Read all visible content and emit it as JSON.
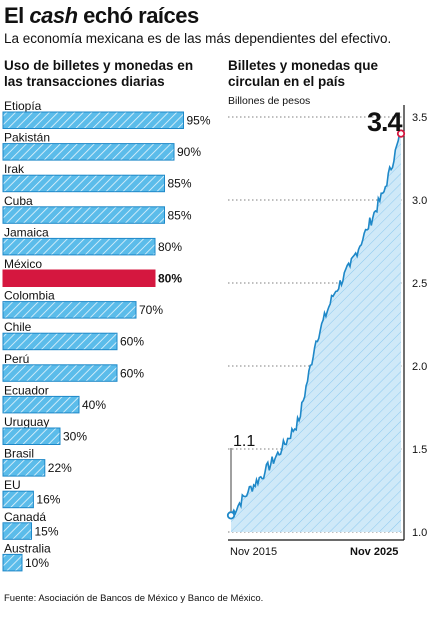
{
  "header": {
    "title_pre": "El ",
    "title_em": "cash",
    "title_post": " echó raíces",
    "subtitle": "La economía mexicana es de las más dependientes del efectivo."
  },
  "colors": {
    "bar": "#5bbcea",
    "bar_highlight": "#d5173f",
    "bar_stroke": "#1e88c8",
    "area_fill": "#cfe9f8",
    "line": "#1e88c8",
    "marker_end": "#d5173f"
  },
  "chart_data": [
    {
      "type": "bar",
      "orientation": "horizontal",
      "title": "Uso de billetes y monedas en las transacciones diarias",
      "categories": [
        "Etiopía",
        "Pakistán",
        "Irak",
        "Cuba",
        "Jamaica",
        "México",
        "Colombia",
        "Chile",
        "Perú",
        "Ecuador",
        "Uruguay",
        "Brasil",
        "EU",
        "Canadá",
        "Australia"
      ],
      "values": [
        95,
        90,
        85,
        85,
        80,
        80,
        70,
        60,
        60,
        40,
        30,
        22,
        16,
        15,
        10
      ],
      "value_labels": [
        "95%",
        "90%",
        "85%",
        "85%",
        "80%",
        "80%",
        "70%",
        "60%",
        "60%",
        "40%",
        "30%",
        "22%",
        "16%",
        "15%",
        "10%"
      ],
      "highlight": "México",
      "xlim": [
        0,
        100
      ]
    },
    {
      "type": "area",
      "title": "Billetes y monedas que circulan en el país",
      "ylabel": "Billones de pesos",
      "x_tick_labels": [
        "Nov 2015",
        "Nov 2025"
      ],
      "x": [
        "Nov 2015",
        "Nov 2016",
        "Nov 2017",
        "Nov 2018",
        "Nov 2019",
        "Nov 2020",
        "Nov 2021",
        "Nov 2022",
        "Nov 2023",
        "Nov 2024",
        "Nov 2025"
      ],
      "values": [
        1.1,
        1.24,
        1.36,
        1.5,
        1.67,
        2.15,
        2.42,
        2.6,
        2.82,
        3.05,
        3.4
      ],
      "ylim": [
        1.0,
        3.5
      ],
      "y_ticks": [
        1.0,
        1.5,
        2.0,
        2.5,
        3.0,
        3.5
      ],
      "y_tick_labels": [
        "1.0",
        "1.5",
        "2.0",
        "2.5",
        "3.0",
        "3.5"
      ],
      "start_label": "1.1",
      "end_label": "3.4",
      "grid": "dotted horizontal"
    }
  ],
  "footer": {
    "source": "Fuente: Asociación de Bancos de México y Banco de México."
  }
}
